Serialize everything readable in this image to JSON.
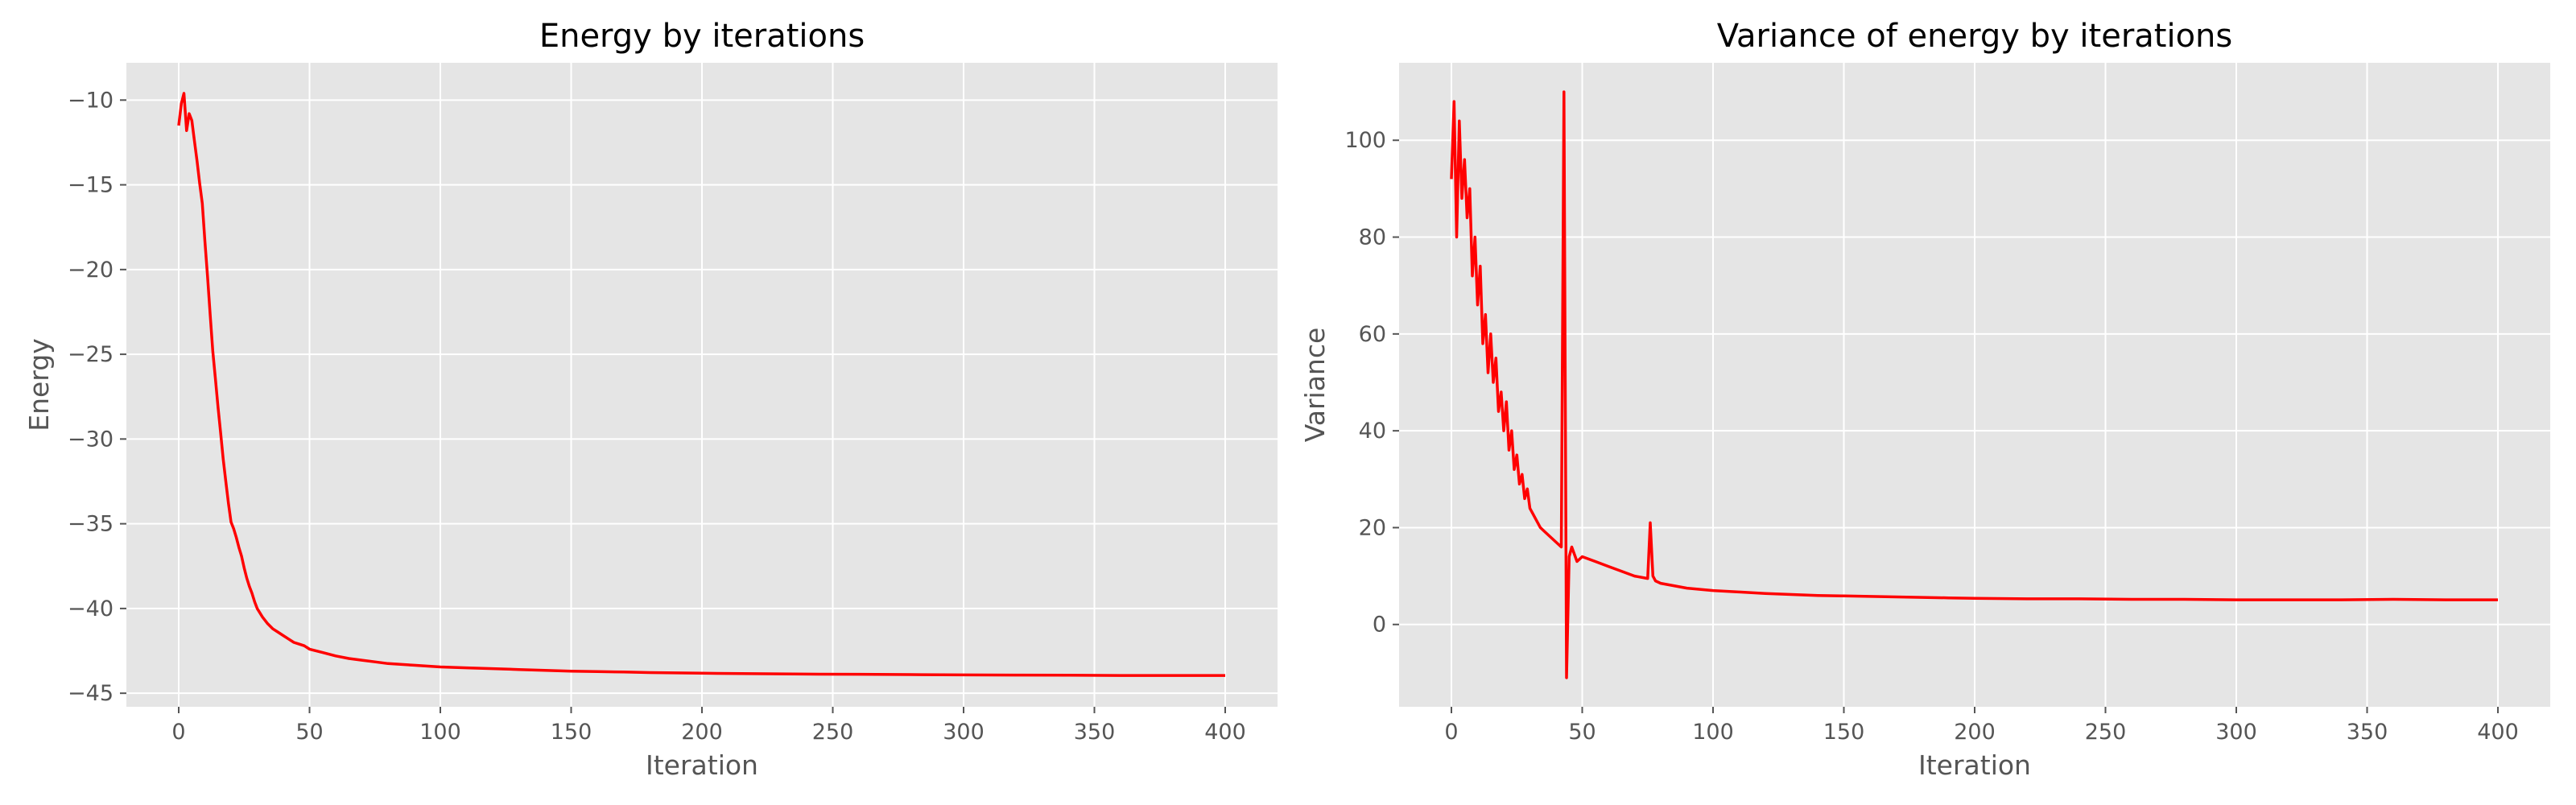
{
  "chart_data": [
    {
      "type": "line",
      "title": "Energy by iterations",
      "xlabel": "Iteration",
      "ylabel": "Energy",
      "xlim": [
        -20,
        420
      ],
      "ylim": [
        -45.8,
        -7.8
      ],
      "xticks": [
        0,
        50,
        100,
        150,
        200,
        250,
        300,
        350,
        400
      ],
      "xtick_labels": [
        "0",
        "50",
        "100",
        "150",
        "200",
        "250",
        "300",
        "350",
        "400"
      ],
      "yticks": [
        -45,
        -40,
        -35,
        -30,
        -25,
        -20,
        -15,
        -10
      ],
      "ytick_labels": [
        "−45",
        "−40",
        "−35",
        "−30",
        "−25",
        "−20",
        "−15",
        "−10"
      ],
      "grid": true,
      "line_color": "#ff0000",
      "series": [
        {
          "x": [
            0,
            1,
            2,
            3,
            4,
            5,
            6,
            7,
            8,
            9,
            10,
            11,
            12,
            13,
            14,
            15,
            16,
            17,
            18,
            19,
            20,
            21,
            22,
            23,
            24,
            25,
            26,
            27,
            28,
            29,
            30,
            32,
            34,
            36,
            38,
            40,
            42,
            44,
            46,
            48,
            50,
            55,
            60,
            65,
            70,
            75,
            80,
            90,
            100,
            110,
            120,
            130,
            140,
            150,
            160,
            170,
            180,
            190,
            200,
            220,
            240,
            260,
            280,
            300,
            320,
            340,
            360,
            380,
            400
          ],
          "y": [
            -11.5,
            -10.2,
            -9.6,
            -11.8,
            -10.8,
            -11.2,
            -12.4,
            -13.6,
            -14.9,
            -16.1,
            -18.3,
            -20.4,
            -22.6,
            -24.8,
            -26.4,
            -28.1,
            -29.6,
            -31.2,
            -32.5,
            -33.8,
            -34.9,
            -35.3,
            -35.8,
            -36.4,
            -36.9,
            -37.6,
            -38.2,
            -38.7,
            -39.1,
            -39.6,
            -40.0,
            -40.5,
            -40.9,
            -41.2,
            -41.4,
            -41.6,
            -41.8,
            -42.0,
            -42.1,
            -42.2,
            -42.4,
            -42.6,
            -42.8,
            -42.95,
            -43.05,
            -43.15,
            -43.25,
            -43.35,
            -43.45,
            -43.5,
            -43.55,
            -43.6,
            -43.65,
            -43.7,
            -43.72,
            -43.75,
            -43.78,
            -43.8,
            -43.82,
            -43.85,
            -43.87,
            -43.88,
            -43.9,
            -43.92,
            -43.93,
            -43.94,
            -43.95,
            -43.95,
            -43.95
          ]
        }
      ]
    },
    {
      "type": "line",
      "title": "Variance of energy by iterations",
      "xlabel": "Iteration",
      "ylabel": "Variance",
      "xlim": [
        -20,
        420
      ],
      "ylim": [
        -17,
        116
      ],
      "xticks": [
        0,
        50,
        100,
        150,
        200,
        250,
        300,
        350,
        400
      ],
      "xtick_labels": [
        "0",
        "50",
        "100",
        "150",
        "200",
        "250",
        "300",
        "350",
        "400"
      ],
      "yticks": [
        0,
        20,
        40,
        60,
        80,
        100
      ],
      "ytick_labels": [
        "0",
        "20",
        "40",
        "60",
        "80",
        "100"
      ],
      "grid": true,
      "line_color": "#ff0000",
      "series": [
        {
          "x": [
            0,
            1,
            2,
            3,
            4,
            5,
            6,
            7,
            8,
            9,
            10,
            11,
            12,
            13,
            14,
            15,
            16,
            17,
            18,
            19,
            20,
            21,
            22,
            23,
            24,
            25,
            26,
            27,
            28,
            29,
            30,
            32,
            34,
            36,
            38,
            40,
            42,
            43,
            44,
            45,
            46,
            48,
            50,
            55,
            60,
            65,
            70,
            75,
            76,
            77,
            78,
            80,
            85,
            90,
            100,
            110,
            120,
            130,
            140,
            150,
            160,
            170,
            180,
            190,
            200,
            220,
            240,
            260,
            280,
            300,
            320,
            340,
            360,
            380,
            400
          ],
          "y": [
            92,
            108,
            80,
            104,
            88,
            96,
            84,
            90,
            72,
            80,
            66,
            74,
            58,
            64,
            52,
            60,
            50,
            55,
            44,
            48,
            40,
            46,
            36,
            40,
            32,
            35,
            29,
            31,
            26,
            28,
            24,
            22,
            20,
            19,
            18,
            17,
            16,
            110,
            -11,
            14,
            16,
            13,
            14,
            13,
            12,
            11,
            10,
            9.5,
            21,
            10,
            9,
            8.5,
            8,
            7.5,
            7,
            6.7,
            6.4,
            6.2,
            6,
            5.9,
            5.8,
            5.7,
            5.6,
            5.5,
            5.4,
            5.3,
            5.3,
            5.2,
            5.2,
            5.1,
            5.1,
            5.1,
            5.2,
            5.1,
            5.1
          ]
        }
      ]
    }
  ]
}
